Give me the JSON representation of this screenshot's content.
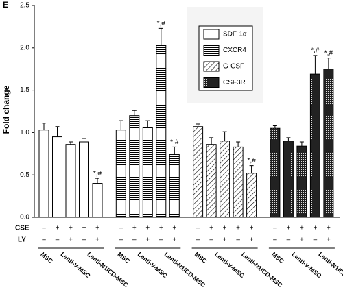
{
  "chart_data": {
    "type": "bar",
    "panel_label": "E",
    "ylabel": "Fold change",
    "ylim": [
      0,
      2.5
    ],
    "yticks": [
      {
        "value": 0,
        "label": "0.0"
      },
      {
        "value": 0.5,
        "label": "0.5"
      },
      {
        "value": 1,
        "label": "1.0"
      },
      {
        "value": 1.5,
        "label": "1.5"
      },
      {
        "value": 2,
        "label": "2.0"
      },
      {
        "value": 2.5,
        "label": "2.5"
      }
    ],
    "x_labels": [
      "MSC",
      "Lenti-V-MSC",
      "Lenti-N1ICD-MSC"
    ],
    "conditions": [
      {
        "name": "CSE",
        "values": [
          "–",
          "+",
          "+",
          "+",
          "+"
        ]
      },
      {
        "name": "LY",
        "values": [
          "–",
          "–",
          "+",
          "–",
          "+"
        ]
      }
    ],
    "series": [
      {
        "name": "SDF-1α",
        "pattern": "plain",
        "values": [
          1.03,
          0.95,
          0.86,
          0.89,
          0.4
        ],
        "errors": [
          0.08,
          0.12,
          0.03,
          0.04,
          0.06
        ],
        "annotations": [
          null,
          null,
          null,
          null,
          "*,#"
        ]
      },
      {
        "name": "CXCR4",
        "pattern": "horizontal",
        "values": [
          1.03,
          1.2,
          1.06,
          2.03,
          0.74
        ],
        "errors": [
          0.11,
          0.06,
          0.08,
          0.2,
          0.09
        ],
        "annotations": [
          null,
          null,
          null,
          "*,#",
          "*,#"
        ]
      },
      {
        "name": "G-CSF",
        "pattern": "diagonal",
        "values": [
          1.07,
          0.86,
          0.9,
          0.83,
          0.52
        ],
        "errors": [
          0.03,
          0.08,
          0.11,
          0.06,
          0.09
        ],
        "annotations": [
          null,
          null,
          null,
          null,
          "*,#"
        ]
      },
      {
        "name": "CSF3R",
        "pattern": "dense",
        "values": [
          1.05,
          0.9,
          0.84,
          1.69,
          1.75
        ],
        "errors": [
          0.03,
          0.04,
          0.05,
          0.22,
          0.13
        ],
        "annotations": [
          null,
          null,
          null,
          "*,#",
          "*,#"
        ]
      }
    ]
  }
}
